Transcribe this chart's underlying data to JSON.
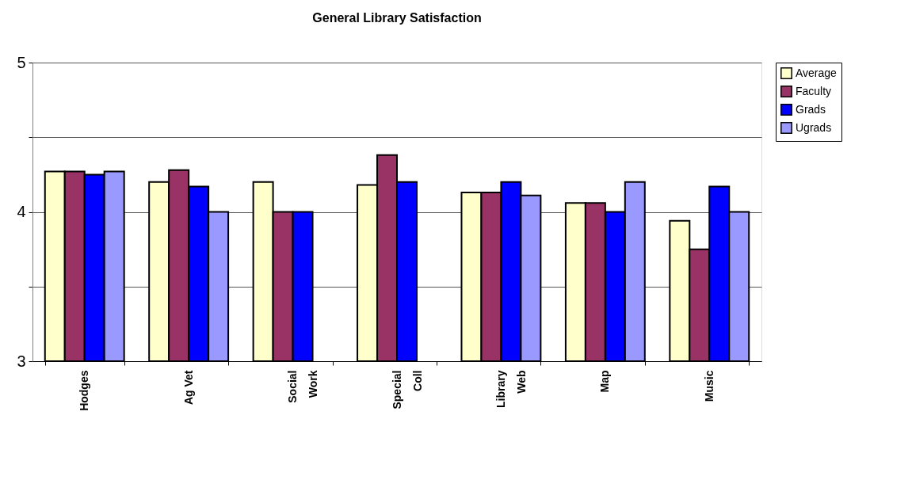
{
  "chart_data": {
    "type": "bar",
    "title": "General Library Satisfaction",
    "categories": [
      "Hodges",
      "Ag Vet",
      "Social\nWork",
      "Special\nColl",
      "Library\nWeb",
      "Map",
      "Music"
    ],
    "series": [
      {
        "name": "Average",
        "color": "#ffffcc",
        "values": [
          4.27,
          4.2,
          4.2,
          4.18,
          4.13,
          4.06,
          3.94
        ]
      },
      {
        "name": "Faculty",
        "color": "#993366",
        "values": [
          4.27,
          4.28,
          4.0,
          4.38,
          4.13,
          4.06,
          3.75
        ]
      },
      {
        "name": "Grads",
        "color": "#0000ff",
        "values": [
          4.25,
          4.17,
          4.0,
          4.2,
          4.2,
          4.0,
          4.17
        ]
      },
      {
        "name": "Ugrads",
        "color": "#9999ff",
        "values": [
          4.27,
          4.0,
          null,
          null,
          4.11,
          4.2,
          4.0
        ]
      }
    ],
    "ylim": [
      3,
      5
    ],
    "yticks": [
      3,
      {
        "value": 3.5,
        "label": null
      },
      4,
      {
        "value": 4.5,
        "label": null
      },
      5
    ],
    "grid": "y",
    "legend": "right"
  }
}
